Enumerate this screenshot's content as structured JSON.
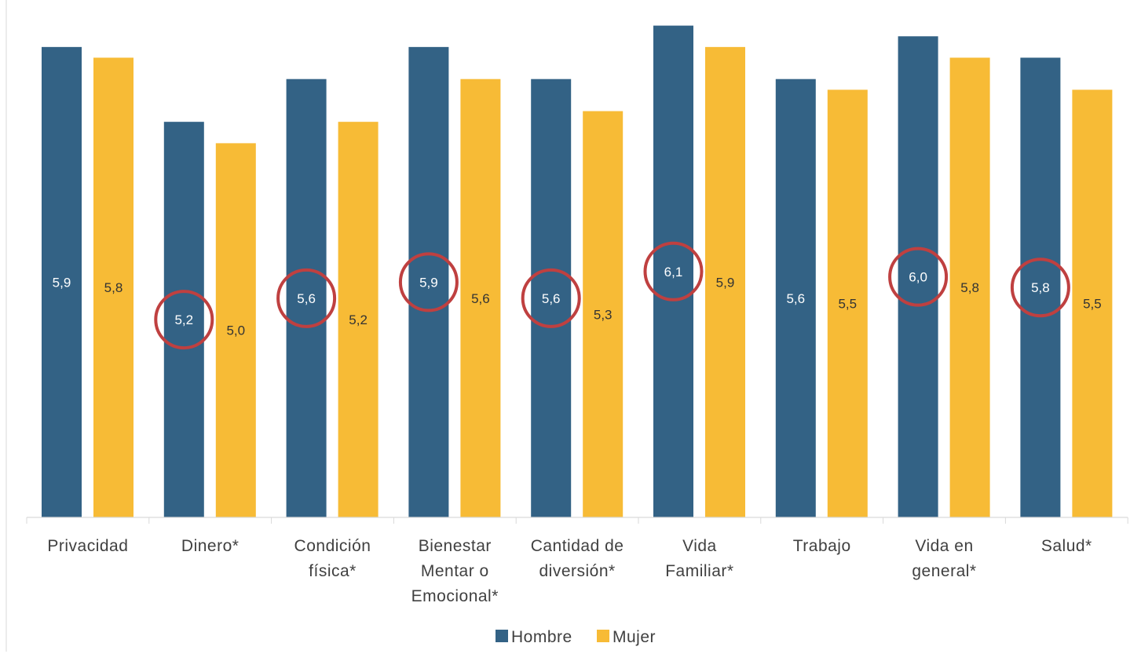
{
  "chart_data": {
    "type": "bar",
    "categories": [
      [
        "Privacidad"
      ],
      [
        "Dinero*"
      ],
      [
        "Condición",
        "física*"
      ],
      [
        "Bienestar",
        "Mentar o",
        "Emocional*"
      ],
      [
        "Cantidad de",
        "diversión*"
      ],
      [
        "Vida",
        "Familiar*"
      ],
      [
        "Trabajo"
      ],
      [
        "Vida en",
        "general*"
      ],
      [
        "Salud*"
      ]
    ],
    "series": [
      {
        "name": "Hombre",
        "color": "#336285",
        "values": [
          5.9,
          5.2,
          5.6,
          5.9,
          5.6,
          6.1,
          5.6,
          6.0,
          5.8
        ],
        "labels": [
          "5,9",
          "5,2",
          "5,6",
          "5,9",
          "5,6",
          "6,1",
          "5,6",
          "6,0",
          "5,8"
        ]
      },
      {
        "name": "Mujer",
        "color": "#F7BB36",
        "values": [
          5.8,
          5.0,
          5.2,
          5.6,
          5.3,
          5.9,
          5.5,
          5.8,
          5.5
        ],
        "labels": [
          "5,8",
          "5,0",
          "5,2",
          "5,6",
          "5,3",
          "5,9",
          "5,5",
          "5,8",
          "5,5"
        ]
      }
    ],
    "highlighted_hombre_categories": [
      1,
      2,
      3,
      4,
      5,
      7,
      8
    ],
    "highlight_color": "#BF4040",
    "ylim": [
      1.5,
      6.2
    ],
    "grid": false,
    "legend_position": "bottom"
  }
}
